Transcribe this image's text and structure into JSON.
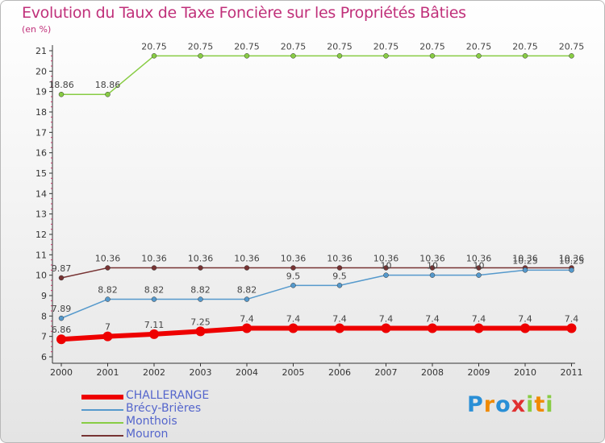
{
  "chart_data": {
    "type": "line",
    "title": "Evolution du Taux de Taxe Foncière sur les Propriétés Bâties",
    "unit_label": "(en %)",
    "xlabel": "",
    "ylabel": "",
    "x": [
      "2000",
      "2001",
      "2002",
      "2003",
      "2004",
      "2005",
      "2006",
      "2007",
      "2008",
      "2009",
      "2010",
      "2011"
    ],
    "yticks": [
      "6",
      "7",
      "8",
      "9",
      "10",
      "11",
      "12",
      "13",
      "14",
      "15",
      "16",
      "17",
      "18",
      "19",
      "20",
      "21"
    ],
    "ylim": [
      6,
      21
    ],
    "series": [
      {
        "name": "Monthois",
        "color": "#88cc44",
        "labels_above": true,
        "values": [
          18.86,
          18.86,
          20.75,
          20.75,
          20.75,
          20.75,
          20.75,
          20.75,
          20.75,
          20.75,
          20.75,
          20.75
        ],
        "labels": [
          "18.86",
          "18.86",
          "20.75",
          "20.75",
          "20.75",
          "20.75",
          "20.75",
          "20.75",
          "20.75",
          "20.75",
          "20.75",
          "20.75"
        ]
      },
      {
        "name": "Mouron",
        "color": "#773333",
        "labels_above": true,
        "values": [
          9.87,
          10.36,
          10.36,
          10.36,
          10.36,
          10.36,
          10.36,
          10.36,
          10.36,
          10.36,
          10.36,
          10.36
        ],
        "labels": [
          "9.87",
          "10.36",
          "10.36",
          "10.36",
          "10.36",
          "10.36",
          "10.36",
          "10.36",
          "10.36",
          "10.36",
          "10.36",
          "10.36"
        ]
      },
      {
        "name": "Brécy-Brières",
        "color": "#5599cc",
        "labels_above": true,
        "values": [
          7.89,
          8.82,
          8.82,
          8.82,
          8.82,
          9.5,
          9.5,
          10,
          10,
          10,
          10.25,
          10.25
        ],
        "labels": [
          "7.89",
          "8.82",
          "8.82",
          "8.82",
          "8.82",
          "9.5",
          "9.5",
          "10",
          "10",
          "10",
          "10.25",
          "10.25"
        ]
      },
      {
        "name": "CHALLERANGE",
        "color": "#ee0000",
        "labels_above": true,
        "values": [
          6.86,
          7,
          7.11,
          7.25,
          7.4,
          7.4,
          7.4,
          7.4,
          7.4,
          7.4,
          7.4,
          7.4
        ],
        "labels": [
          "6.86",
          "7",
          "7.11",
          "7.25",
          "7.4",
          "7.4",
          "7.4",
          "7.4",
          "7.4",
          "7.4",
          "7.4",
          "7.4"
        ]
      }
    ],
    "legend": [
      {
        "name": "CHALLERANGE",
        "color": "#ee0000"
      },
      {
        "name": "Brécy-Brières",
        "color": "#5599cc"
      },
      {
        "name": "Monthois",
        "color": "#88cc44"
      },
      {
        "name": "Mouron",
        "color": "#773333"
      }
    ]
  },
  "logo": {
    "text": "Proxiti",
    "letters": [
      "P",
      "r",
      "o",
      "x",
      "i",
      "t",
      "i"
    ],
    "colors": [
      "#2a8fd6",
      "#f08a00",
      "#2a8fd6",
      "#e03030",
      "#88cc44",
      "#f08a00",
      "#88cc44"
    ]
  }
}
